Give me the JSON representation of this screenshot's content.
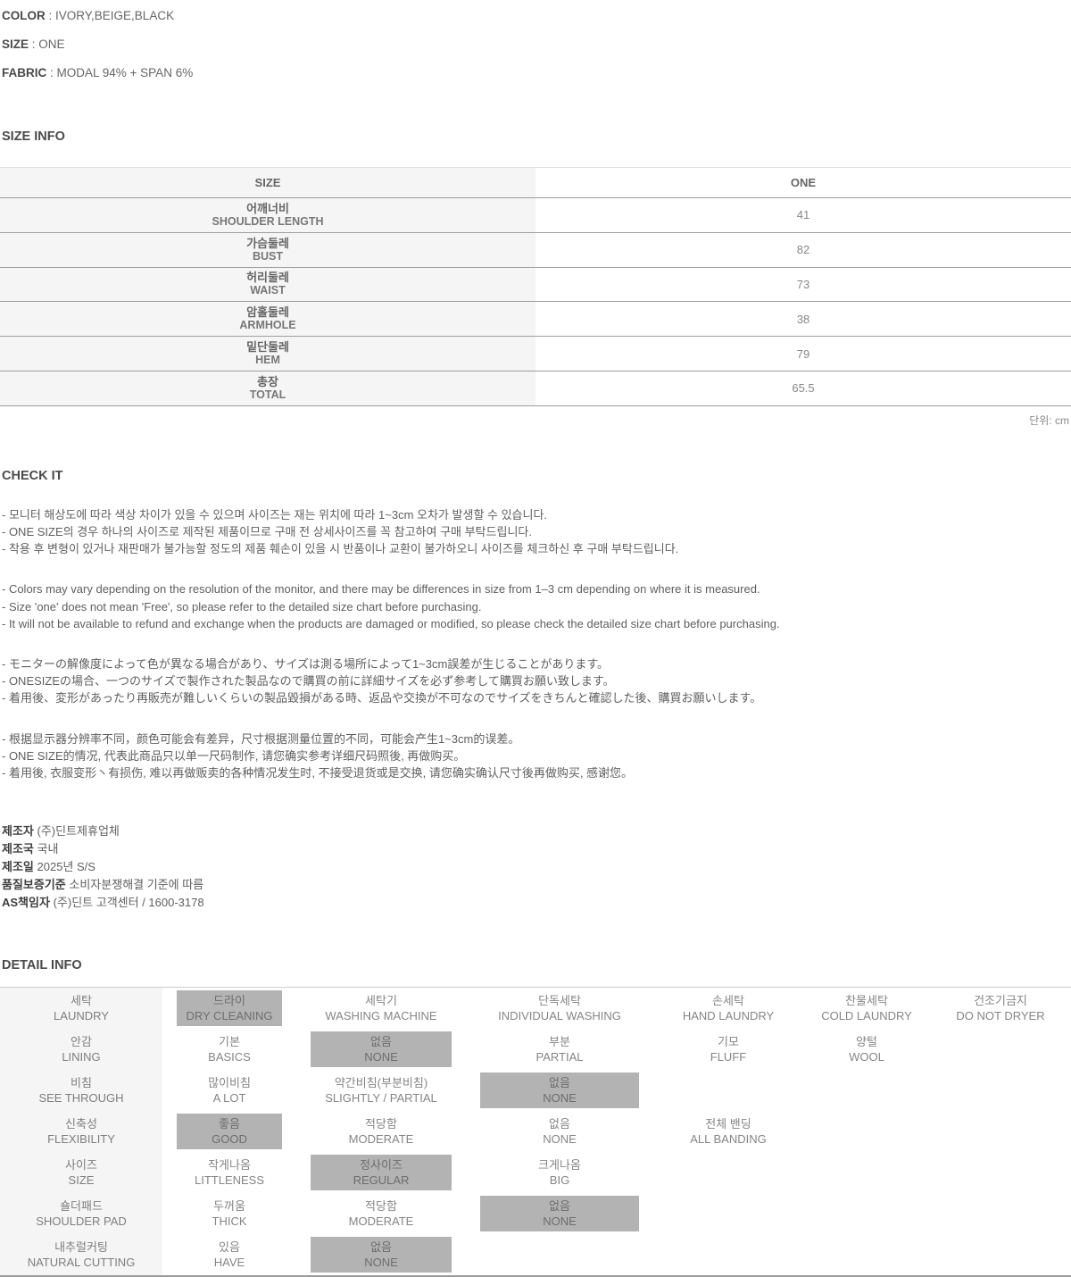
{
  "misc": {
    "colon": " : "
  },
  "specs": [
    {
      "label": "COLOR",
      "value": "IVORY,BEIGE,BLACK"
    },
    {
      "label": "SIZE",
      "value": "ONE"
    },
    {
      "label": "FABRIC",
      "value": "MODAL 94% + SPAN 6%"
    }
  ],
  "size_info": {
    "heading": "SIZE INFO",
    "unit_note": "단위: cm",
    "table": {
      "header_left": "SIZE",
      "header_right": "ONE",
      "rows": [
        {
          "kr": "어깨너비",
          "en": "SHOULDER LENGTH",
          "value": "41"
        },
        {
          "kr": "가슴둘레",
          "en": "BUST",
          "value": "82"
        },
        {
          "kr": "허리둘레",
          "en": "WAIST",
          "value": "73"
        },
        {
          "kr": "암홀둘레",
          "en": "ARMHOLE",
          "value": "38"
        },
        {
          "kr": "밑단둘레",
          "en": "HEM",
          "value": "79"
        },
        {
          "kr": "총장",
          "en": "TOTAL",
          "value": "65.5"
        }
      ]
    }
  },
  "check_it": {
    "heading": "CHECK IT",
    "groups": [
      {
        "lines": [
          "- 모니터 해상도에 따라 색상 차이가 있을 수 있으며 사이즈는 재는 위치에 따라 1~3cm 오차가 발생할 수 있습니다.",
          "- ONE SIZE의 경우 하나의 사이즈로 제작된 제품이므로 구매 전 상세사이즈를 꼭 참고하여 구매 부탁드립니다.",
          "- 착용 후 변형이 있거나 재판매가 불가능할 정도의 제품 훼손이 있을 시 반품이나 교환이 불가하오니 사이즈를 체크하신 후 구매 부탁드립니다."
        ]
      },
      {
        "lines": [
          "- Colors may vary depending on the resolution of the monitor, and there may be differences in size from 1–3 cm depending on where it is measured.",
          "- Size 'one' does not mean 'Free', so please refer to the detailed size chart before purchasing.",
          "- It will not be available to refund and exchange when the products are damaged or modified, so please check the detailed size chart before purchasing."
        ]
      },
      {
        "lines": [
          "- モニターの解像度によって色が異なる場合があり、サイズは測る場所によって1~3cm誤差が生じることがあります。",
          "- ONESIZEの場合、一つのサイズで製作された製品なので購買の前に詳細サイズを必ず参考して購買お願い致します。",
          "- 着用後、変形があったり再販売が難しいくらいの製品毀損がある時、返品や交換が不可なのでサイズをきちんと確認した後、購買お願いします。"
        ]
      },
      {
        "lines": [
          "- 根据显示器分辨率不同，颜色可能会有差异，尺寸根据测量位置的不同，可能会产生1~3cm的误差。",
          "- ONE SIZE的情况, 代表此商品只以单一尺码制作, 请您确实参考详细尺码照後, 再做购买。",
          "- 着用後, 衣服变形丶有损伤, 难以再做贩卖的各种情况发生时, 不接受退货或是交换, 请您确实确认尺寸後再做购买, 感谢您。"
        ]
      }
    ]
  },
  "manufacturer": {
    "lines": [
      {
        "label": "제조자",
        "value": "(주)딘트제휴업체"
      },
      {
        "label": "제조국",
        "value": "국내"
      },
      {
        "label": "제조일",
        "value": "2025년 S/S"
      },
      {
        "label": "품질보증기준",
        "value": "소비자분쟁해결 기준에 따름"
      },
      {
        "label": "AS책임자",
        "value": "(주)딘트 고객센터 / 1600-3178"
      }
    ]
  },
  "detail_info": {
    "heading": "DETAIL INFO",
    "colors": {
      "highlight": "#b3b3b3",
      "label_bg": "#f5f5f6"
    },
    "rows": [
      {
        "label": {
          "kr": "세탁",
          "en": "LAUNDRY"
        },
        "options": [
          {
            "kr": "드라이",
            "en": "DRY CLEANING",
            "hl": true
          },
          {
            "kr": "세탁기",
            "en": "WASHING MACHINE",
            "hl": false
          },
          {
            "kr": "단독세탁",
            "en": "INDIVIDUAL WASHING",
            "hl": false
          },
          {
            "kr": "손세탁",
            "en": "HAND LAUNDRY",
            "hl": false
          },
          {
            "kr": "찬물세탁",
            "en": "COLD LAUNDRY",
            "hl": false
          },
          {
            "kr": "건조기금지",
            "en": "DO NOT DRYER",
            "hl": false
          }
        ]
      },
      {
        "label": {
          "kr": "안감",
          "en": "LINING"
        },
        "options": [
          {
            "kr": "기본",
            "en": "BASICS",
            "hl": false
          },
          {
            "kr": "없음",
            "en": "NONE",
            "hl": true
          },
          {
            "kr": "부분",
            "en": "PARTIAL",
            "hl": false
          },
          {
            "kr": "기모",
            "en": "FLUFF",
            "hl": false
          },
          {
            "kr": "양털",
            "en": "WOOL",
            "hl": false
          }
        ]
      },
      {
        "label": {
          "kr": "비침",
          "en": "SEE THROUGH"
        },
        "options": [
          {
            "kr": "많이비침",
            "en": "A LOT",
            "hl": false
          },
          {
            "kr": "약간비침(부분비침)",
            "en": "SLIGHTLY / PARTIAL",
            "hl": false
          },
          {
            "kr": "없음",
            "en": "NONE",
            "hl": true
          }
        ]
      },
      {
        "label": {
          "kr": "신축성",
          "en": "FLEXIBILITY"
        },
        "options": [
          {
            "kr": "좋음",
            "en": "GOOD",
            "hl": true
          },
          {
            "kr": "적당함",
            "en": "MODERATE",
            "hl": false
          },
          {
            "kr": "없음",
            "en": "NONE",
            "hl": false
          },
          {
            "kr": "전체 밴딩",
            "en": "ALL BANDING",
            "hl": false
          }
        ]
      },
      {
        "label": {
          "kr": "사이즈",
          "en": "SIZE"
        },
        "options": [
          {
            "kr": "작게나옴",
            "en": "LITTLENESS",
            "hl": false
          },
          {
            "kr": "정사이즈",
            "en": "REGULAR",
            "hl": true
          },
          {
            "kr": "크게나옴",
            "en": "BIG",
            "hl": false
          }
        ]
      },
      {
        "label": {
          "kr": "숄더패드",
          "en": "SHOULDER PAD"
        },
        "options": [
          {
            "kr": "두꺼움",
            "en": "THICK",
            "hl": false
          },
          {
            "kr": "적당함",
            "en": "MODERATE",
            "hl": false
          },
          {
            "kr": "없음",
            "en": "NONE",
            "hl": true
          }
        ]
      },
      {
        "label": {
          "kr": "내추럴커팅",
          "en": "NATURAL CUTTING"
        },
        "options": [
          {
            "kr": "있음",
            "en": "HAVE",
            "hl": false
          },
          {
            "kr": "없음",
            "en": "NONE",
            "hl": true
          }
        ]
      }
    ]
  }
}
